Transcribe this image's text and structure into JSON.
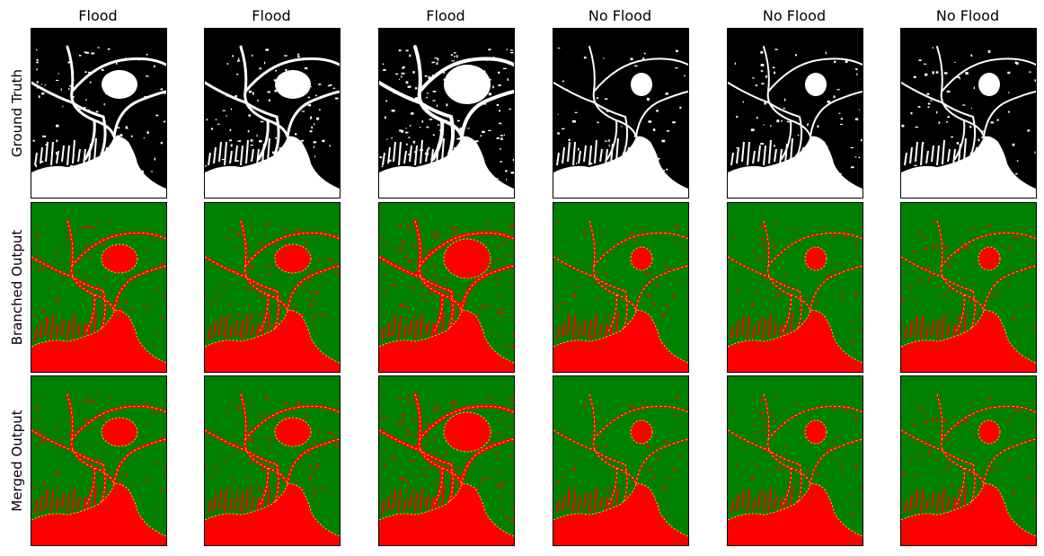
{
  "figure": {
    "columns": [
      {
        "title": "Flood"
      },
      {
        "title": "Flood"
      },
      {
        "title": "Flood"
      },
      {
        "title": "No Flood"
      },
      {
        "title": "No Flood"
      },
      {
        "title": "No Flood"
      }
    ],
    "rows": [
      {
        "label": "Ground Truth",
        "style": "mask"
      },
      {
        "label": "Branched Output",
        "style": "overlay"
      },
      {
        "label": "Merged Output",
        "style": "overlay"
      }
    ],
    "colors": {
      "mask_background": "#000000",
      "mask_water": "#ffffff",
      "overlay_background": "#008000",
      "overlay_water": "#ff0000",
      "overlay_edge": "#ffff00"
    }
  }
}
